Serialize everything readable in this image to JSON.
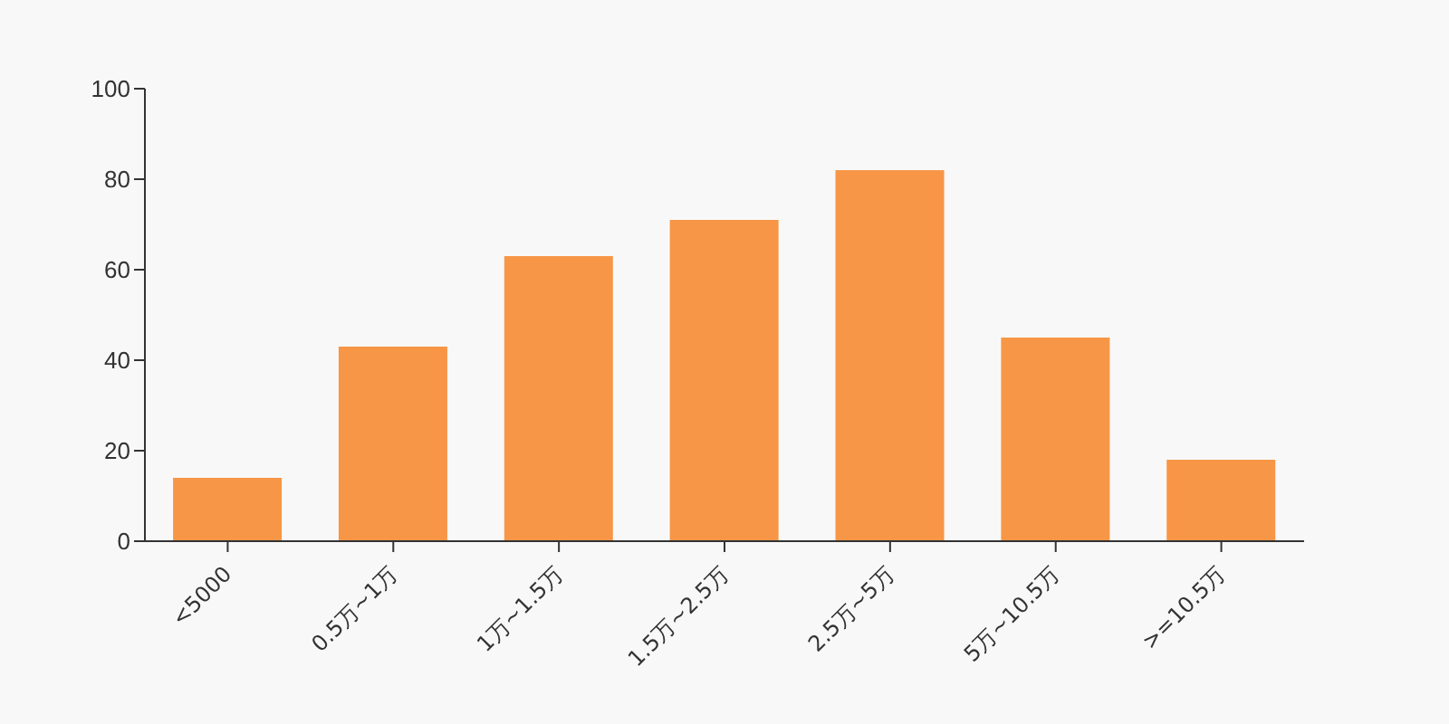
{
  "chart_data": {
    "type": "bar",
    "categories": [
      "<5000",
      "0.5万~1万",
      "1万~1.5万",
      "1.5万~2.5万",
      "2.5万~5万",
      "5万~10.5万",
      ">=10.5万"
    ],
    "values": [
      14,
      43,
      63,
      71,
      82,
      45,
      18
    ],
    "color": "#f79646",
    "ylim": [
      0,
      100
    ],
    "yticks": [
      0,
      20,
      40,
      60,
      80,
      100
    ],
    "grid": false,
    "legend": false
  }
}
